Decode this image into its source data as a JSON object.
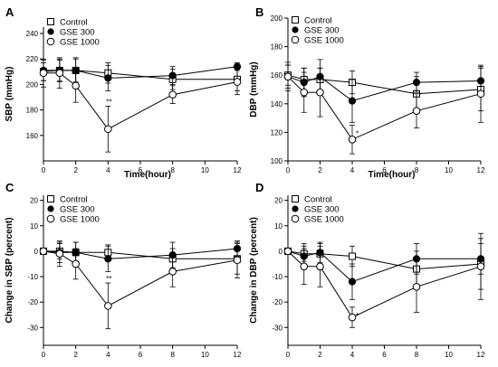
{
  "chart_data": [
    {
      "panel": "A",
      "type": "line",
      "ylabel": "SBP (mmHg)",
      "xlabel": "Time(hour)",
      "x_ticks": [
        0,
        2,
        4,
        6,
        8,
        10,
        12
      ],
      "y_ticks": [
        160,
        180,
        200,
        220,
        240
      ],
      "xlim": [
        0,
        12
      ],
      "ylim": [
        140,
        245
      ],
      "grid": false,
      "legend_position": "top-left",
      "x": [
        0,
        1,
        2,
        4,
        8,
        12
      ],
      "series": [
        {
          "name": "Control",
          "marker": "open-square",
          "values": [
            210,
            211,
            211,
            209,
            204,
            204
          ],
          "errors": [
            7,
            8,
            9,
            8,
            8,
            9
          ]
        },
        {
          "name": "GSE 300",
          "marker": "filled-circle",
          "values": [
            211,
            211,
            211,
            205,
            207,
            214
          ],
          "errors": [
            8,
            9,
            10,
            10,
            7,
            3
          ]
        },
        {
          "name": "GSE 1000",
          "marker": "open-circle",
          "values": [
            209,
            209,
            199,
            165,
            192,
            202
          ],
          "errors": [
            11,
            12,
            13,
            18,
            7,
            10
          ]
        }
      ],
      "annotations": [
        {
          "x": 4,
          "text": "**"
        }
      ]
    },
    {
      "panel": "B",
      "type": "line",
      "ylabel": "DBP (mmHg)",
      "xlabel": "Time(hour)",
      "x_ticks": [
        0,
        2,
        4,
        6,
        8,
        10,
        12
      ],
      "y_ticks": [
        100,
        120,
        140,
        160,
        180,
        200
      ],
      "xlim": [
        0,
        12
      ],
      "ylim": [
        100,
        200
      ],
      "grid": false,
      "legend_position": "top-left",
      "x": [
        0,
        1,
        2,
        4,
        8,
        12
      ],
      "series": [
        {
          "name": "Control",
          "marker": "open-square",
          "values": [
            160,
            157,
            157,
            155,
            147,
            150
          ],
          "errors": [
            7,
            8,
            8,
            8,
            12,
            15
          ]
        },
        {
          "name": "GSE 300",
          "marker": "filled-circle",
          "values": [
            159,
            155,
            159,
            142,
            155,
            156
          ],
          "errors": [
            8,
            10,
            12,
            15,
            7,
            10
          ]
        },
        {
          "name": "GSE 1000",
          "marker": "open-circle",
          "values": [
            159,
            148,
            148,
            115,
            135,
            147
          ],
          "errors": [
            10,
            14,
            17,
            10,
            12,
            20
          ]
        }
      ],
      "annotations": [
        {
          "x": 4,
          "text": "*"
        }
      ]
    },
    {
      "panel": "C",
      "type": "line",
      "ylabel": "Change in SBP (percent)",
      "xlabel": "",
      "x_ticks": [
        0,
        2,
        4,
        6,
        8,
        10,
        12
      ],
      "y_ticks": [
        -30,
        -20,
        -10,
        0,
        10,
        20
      ],
      "xlim": [
        0,
        12
      ],
      "ylim": [
        -37,
        22
      ],
      "grid": false,
      "legend_position": "top-left",
      "x": [
        0,
        1,
        2,
        4,
        8,
        12
      ],
      "series": [
        {
          "name": "Control",
          "marker": "open-square",
          "values": [
            0,
            0,
            -0.5,
            -0.5,
            -3,
            -3
          ],
          "errors": [
            0.5,
            3,
            4,
            3,
            4,
            6
          ]
        },
        {
          "name": "GSE 300",
          "marker": "filled-circle",
          "values": [
            0,
            -0.5,
            -0.5,
            -3,
            -1.5,
            1
          ],
          "errors": [
            0.5,
            4,
            4,
            5,
            5,
            3
          ]
        },
        {
          "name": "GSE 1000",
          "marker": "open-circle",
          "values": [
            0,
            -1,
            -5,
            -21.5,
            -8,
            -3.5
          ],
          "errors": [
            0.5,
            5,
            6,
            9,
            6,
            7
          ]
        }
      ],
      "annotations": [
        {
          "x": 4,
          "text": "**"
        }
      ]
    },
    {
      "panel": "D",
      "type": "line",
      "ylabel": "Change in DBP (percent)",
      "xlabel": "",
      "x_ticks": [
        0,
        2,
        4,
        6,
        8,
        10,
        12
      ],
      "y_ticks": [
        -30,
        -20,
        -10,
        0,
        10,
        20
      ],
      "xlim": [
        0,
        12
      ],
      "ylim": [
        -37,
        22
      ],
      "grid": false,
      "legend_position": "top-left",
      "x": [
        0,
        1,
        2,
        4,
        8,
        12
      ],
      "series": [
        {
          "name": "Control",
          "marker": "open-square",
          "values": [
            0,
            -1,
            -1,
            -2,
            -7,
            -5
          ],
          "errors": [
            0.5,
            3,
            4,
            4,
            7,
            10
          ]
        },
        {
          "name": "GSE 300",
          "marker": "filled-circle",
          "values": [
            0,
            -2,
            -0.5,
            -12,
            -3,
            -3
          ],
          "errors": [
            0.5,
            5,
            4,
            7,
            6,
            6
          ]
        },
        {
          "name": "GSE 1000",
          "marker": "open-circle",
          "values": [
            0,
            -6,
            -6,
            -26,
            -14,
            -6
          ],
          "errors": [
            0.5,
            7,
            8,
            4,
            10,
            13
          ]
        }
      ],
      "annotations": [
        {
          "x": 4,
          "text": "*"
        }
      ]
    }
  ]
}
